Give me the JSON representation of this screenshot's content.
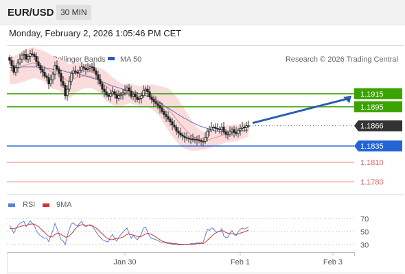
{
  "header": {
    "symbol": "EUR/USD",
    "timeframe": "30 MIN"
  },
  "datetime": "Monday, February 2, 2026 1:05:46 PM CET",
  "copyright": "Research © 2026 Trading Central",
  "legend": {
    "bollinger": "MA 20 + Bollinger Bands",
    "ma50": "MA 50",
    "rsi": "RSI",
    "rsi_ma": "9MA"
  },
  "colors": {
    "ma20": "#f08c8c",
    "band_fill": "#fbdcdc",
    "ma50": "#6a6fb8",
    "resistance": "#3ba300",
    "pivot": "#2464d6",
    "support": "#e06060",
    "current": "#333333",
    "rsi": "#5b7fd6",
    "rsi_ma": "#d83030",
    "arrow": "#2a5db0"
  },
  "chart_data": [
    {
      "type": "candlestick",
      "ylim": [
        1.1765,
        1.1985
      ],
      "xlabels": [
        {
          "label": "Jan 30",
          "idx": 56
        },
        {
          "label": "Feb 1",
          "idx": 112
        },
        {
          "label": "Feb 3",
          "idx": 157
        }
      ],
      "levels": [
        {
          "label": "1.1915",
          "value": 1.1915,
          "kind": "resistance"
        },
        {
          "label": "1.1895",
          "value": 1.1895,
          "kind": "resistance"
        },
        {
          "label": "1.1866",
          "value": 1.1866,
          "kind": "current"
        },
        {
          "label": "1.1835",
          "value": 1.1835,
          "kind": "pivot"
        },
        {
          "label": "1.1810",
          "value": 1.181,
          "kind": "support"
        },
        {
          "label": "1.1780",
          "value": 1.178,
          "kind": "support"
        }
      ],
      "close": [
        1.1966,
        1.1958,
        1.1948,
        1.1955,
        1.1962,
        1.1968,
        1.1974,
        1.1975,
        1.1968,
        1.1972,
        1.1976,
        1.1975,
        1.1972,
        1.1964,
        1.1958,
        1.1952,
        1.1948,
        1.1942,
        1.194,
        1.193,
        1.1936,
        1.1945,
        1.1958,
        1.1953,
        1.1946,
        1.1934,
        1.1928,
        1.1912,
        1.1922,
        1.1934,
        1.1946,
        1.195,
        1.1948,
        1.1947,
        1.1951,
        1.1956,
        1.1954,
        1.1952,
        1.1954,
        1.1956,
        1.1955,
        1.195,
        1.1944,
        1.1937,
        1.193,
        1.1922,
        1.1918,
        1.1913,
        1.1911,
        1.1915,
        1.1918,
        1.1914,
        1.1908,
        1.1912,
        1.1914,
        1.1916,
        1.192,
        1.1924,
        1.1919,
        1.1911,
        1.1914,
        1.191,
        1.1906,
        1.1908,
        1.1912,
        1.192,
        1.1922,
        1.1918,
        1.191,
        1.1906,
        1.1903,
        1.19,
        1.1897,
        1.1893,
        1.1888,
        1.1883,
        1.188,
        1.1876,
        1.1872,
        1.1867,
        1.1864,
        1.1858,
        1.1855,
        1.1852,
        1.185,
        1.1848,
        1.1847,
        1.1846,
        1.1846,
        1.1845,
        1.1845,
        1.1844,
        1.1843,
        1.1842,
        1.1842,
        1.1848,
        1.1858,
        1.186,
        1.1864,
        1.1864,
        1.1862,
        1.1861,
        1.186,
        1.1864,
        1.1857,
        1.1853,
        1.1853,
        1.1857,
        1.186,
        1.1856,
        1.1854,
        1.1859,
        1.1862,
        1.1864,
        1.1863,
        1.1866,
        1.1866
      ],
      "ma20": [
        1.195,
        1.195,
        1.1951,
        1.1952,
        1.1953,
        1.1955,
        1.1957,
        1.1958,
        1.1959,
        1.196,
        1.1961,
        1.1962,
        1.1962,
        1.1961,
        1.196,
        1.1959,
        1.1958,
        1.1956,
        1.1954,
        1.1951,
        1.1949,
        1.1947,
        1.1946,
        1.1945,
        1.1944,
        1.1942,
        1.194,
        1.1937,
        1.1935,
        1.1934,
        1.1935,
        1.1937,
        1.1939,
        1.194,
        1.1941,
        1.1942,
        1.1942,
        1.1942,
        1.1942,
        1.1942,
        1.1941,
        1.194,
        1.1938,
        1.1936,
        1.1934,
        1.1932,
        1.1929,
        1.1926,
        1.1924,
        1.1921,
        1.1919,
        1.1917,
        1.1915,
        1.1914,
        1.1913,
        1.1913,
        1.1914,
        1.1915,
        1.1915,
        1.1915,
        1.1914,
        1.1913,
        1.1912,
        1.1911,
        1.1911,
        1.1911,
        1.1912,
        1.1912,
        1.1911,
        1.191,
        1.1909,
        1.1907,
        1.1905,
        1.1903,
        1.19,
        1.1897,
        1.1894,
        1.1891,
        1.1887,
        1.1884,
        1.188,
        1.1876,
        1.1872,
        1.1868,
        1.1865,
        1.1861,
        1.1858,
        1.1855,
        1.1852,
        1.185,
        1.1848,
        1.1846,
        1.1845,
        1.1844,
        1.1843,
        1.1843,
        1.1844,
        1.1845,
        1.1846,
        1.1847,
        1.1848,
        1.1849,
        1.185,
        1.1851,
        1.1852,
        1.1853,
        1.1854,
        1.1854,
        1.1855,
        1.1855,
        1.1855,
        1.1856,
        1.1857,
        1.1858,
        1.1859,
        1.186,
        1.1861
      ],
      "ma50": [
        1.1955,
        1.1955,
        1.1955,
        1.1955,
        1.1955,
        1.1955,
        1.1956,
        1.1956,
        1.1956,
        1.1956,
        1.1956,
        1.1956,
        1.1956,
        1.1956,
        1.1955,
        1.1955,
        1.1955,
        1.1954,
        1.1954,
        1.1953,
        1.1953,
        1.1952,
        1.1952,
        1.1952,
        1.1951,
        1.1951,
        1.195,
        1.1949,
        1.1948,
        1.1948,
        1.1947,
        1.1947,
        1.1946,
        1.1946,
        1.1945,
        1.1944,
        1.1943,
        1.1942,
        1.1941,
        1.194,
        1.1939,
        1.1938,
        1.1937,
        1.1936,
        1.1935,
        1.1933,
        1.1932,
        1.1931,
        1.1929,
        1.1928,
        1.1927,
        1.1926,
        1.1925,
        1.1924,
        1.1923,
        1.1922,
        1.1921,
        1.192,
        1.192,
        1.1919,
        1.1918,
        1.1917,
        1.1916,
        1.1915,
        1.1914,
        1.1913,
        1.1912,
        1.1911,
        1.191,
        1.1909,
        1.1907,
        1.1905,
        1.1903,
        1.1901,
        1.1899,
        1.1897,
        1.1895,
        1.1893,
        1.1891,
        1.1889,
        1.1887,
        1.1885,
        1.1883,
        1.1881,
        1.1879,
        1.1877,
        1.1876,
        1.1874,
        1.1872,
        1.1871,
        1.1869,
        1.1868,
        1.1866,
        1.1865,
        1.1864,
        1.1863,
        1.1862,
        1.1861,
        1.186,
        1.1859,
        1.1858,
        1.1858,
        1.1857,
        1.1857,
        1.1856,
        1.1856,
        1.1856,
        1.1856,
        1.1856,
        1.1856,
        1.1856,
        1.1857,
        1.1857,
        1.1858,
        1.1858,
        1.1859,
        1.1859
      ],
      "bb_width": [
        0.002,
        0.002,
        0.0021,
        0.0022,
        0.0022,
        0.0023,
        0.0024,
        0.0024,
        0.0024,
        0.0024,
        0.0024,
        0.0024,
        0.0023,
        0.0023,
        0.0023,
        0.0023,
        0.0023,
        0.0024,
        0.0024,
        0.0025,
        0.0025,
        0.0025,
        0.0024,
        0.0024,
        0.0024,
        0.0025,
        0.0026,
        0.0027,
        0.0027,
        0.0026,
        0.0025,
        0.0024,
        0.0023,
        0.0022,
        0.0021,
        0.002,
        0.0019,
        0.0019,
        0.0018,
        0.0018,
        0.0018,
        0.0018,
        0.0018,
        0.0019,
        0.002,
        0.0021,
        0.0022,
        0.0022,
        0.0022,
        0.0022,
        0.0021,
        0.0021,
        0.002,
        0.0019,
        0.0018,
        0.0017,
        0.0016,
        0.0016,
        0.0015,
        0.0015,
        0.0015,
        0.0015,
        0.0015,
        0.0015,
        0.0016,
        0.0016,
        0.0017,
        0.0017,
        0.0018,
        0.0019,
        0.002,
        0.0021,
        0.0022,
        0.0024,
        0.0026,
        0.0028,
        0.003,
        0.0032,
        0.0033,
        0.0034,
        0.0034,
        0.0034,
        0.0034,
        0.0033,
        0.0032,
        0.003,
        0.0028,
        0.0026,
        0.0024,
        0.0022,
        0.002,
        0.0018,
        0.0016,
        0.0015,
        0.0014,
        0.0013,
        0.0013,
        0.0013,
        0.0013,
        0.0013,
        0.0013,
        0.0013,
        0.0013,
        0.0013,
        0.0013,
        0.0013,
        0.0013,
        0.0013,
        0.0013,
        0.0013,
        0.0013,
        0.0012,
        0.0012,
        0.0012,
        0.0012,
        0.0012,
        0.0012
      ]
    },
    {
      "type": "line",
      "ylim": [
        20,
        80
      ],
      "ticks": [
        {
          "label": "70",
          "value": 70
        },
        {
          "label": "50",
          "value": 50
        },
        {
          "label": "30",
          "value": 30
        }
      ],
      "rsi": [
        60,
        55,
        48,
        54,
        60,
        63,
        65,
        66,
        58,
        62,
        67,
        63,
        60,
        52,
        47,
        44,
        42,
        40,
        41,
        35,
        44,
        52,
        63,
        55,
        46,
        38,
        36,
        30,
        44,
        54,
        62,
        64,
        60,
        59,
        63,
        66,
        60,
        58,
        60,
        61,
        60,
        55,
        50,
        45,
        42,
        38,
        37,
        35,
        35,
        42,
        46,
        40,
        36,
        42,
        46,
        49,
        53,
        56,
        48,
        40,
        45,
        41,
        38,
        42,
        47,
        56,
        57,
        50,
        43,
        40,
        39,
        38,
        37,
        35,
        34,
        33,
        33,
        32,
        32,
        31,
        31,
        30,
        30,
        30,
        30,
        31,
        31,
        31,
        32,
        32,
        32,
        33,
        33,
        33,
        34,
        44,
        54,
        52,
        56,
        55,
        50,
        50,
        50,
        55,
        44,
        41,
        42,
        48,
        52,
        46,
        44,
        50,
        54,
        56,
        54,
        56,
        58
      ],
      "rsi_ma": [
        55,
        55,
        55,
        56,
        57,
        58,
        59,
        60,
        60,
        61,
        62,
        62,
        62,
        60,
        58,
        55,
        52,
        49,
        46,
        43,
        42,
        43,
        46,
        48,
        48,
        46,
        44,
        42,
        42,
        44,
        47,
        51,
        55,
        58,
        60,
        61,
        61,
        60,
        60,
        60,
        59,
        58,
        56,
        53,
        50,
        47,
        44,
        41,
        39,
        38,
        38,
        39,
        40,
        40,
        41,
        42,
        44,
        46,
        47,
        46,
        45,
        44,
        43,
        42,
        43,
        45,
        47,
        48,
        47,
        46,
        44,
        42,
        40,
        38,
        36,
        35,
        34,
        33,
        33,
        32,
        32,
        32,
        31,
        31,
        31,
        31,
        31,
        31,
        31,
        31,
        31,
        32,
        32,
        32,
        32,
        34,
        37,
        40,
        43,
        46,
        48,
        50,
        51,
        52,
        51,
        49,
        48,
        47,
        47,
        47,
        46,
        47,
        48,
        49,
        50,
        51,
        53
      ]
    }
  ]
}
